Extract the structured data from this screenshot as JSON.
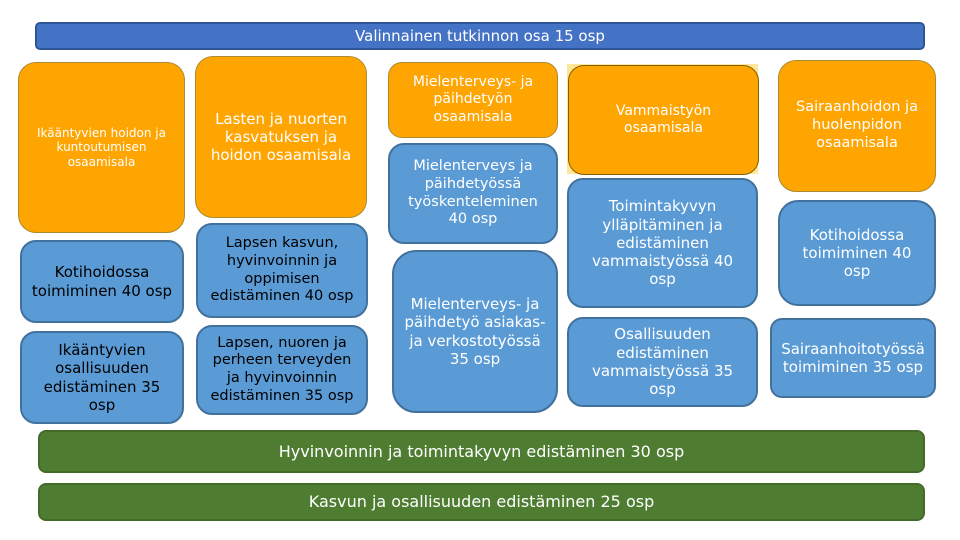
{
  "title_banner": {
    "label": "Valinnainen tutkinnon osa 15 osp"
  },
  "columns": [
    {
      "header": {
        "label": "Ikääntyvien hoidon ja kuntoutumisen osaamisala"
      },
      "units": [
        {
          "label": "Kotihoidossa toimiminen 40 osp"
        },
        {
          "label": "Ikääntyvien osallisuuden edistäminen 35 osp"
        }
      ]
    },
    {
      "header": {
        "label": "Lasten ja nuorten kasvatuksen ja hoidon osaamisala"
      },
      "units": [
        {
          "label": "Lapsen kasvun, hyvinvoinnin ja oppimisen edistäminen 40 osp"
        },
        {
          "label": "Lapsen, nuoren ja perheen terveyden ja hyvinvoinnin edistäminen 35 osp"
        }
      ]
    },
    {
      "header": {
        "label": "Mielenterveys- ja päihdetyön osaamisala"
      },
      "units": [
        {
          "label": "Mielenterveys ja päihdetyössä työskenteleminen 40 osp"
        },
        {
          "label": "Mielenterveys- ja päihdetyö asiakas- ja verkostotyössä 35 osp"
        }
      ]
    },
    {
      "header": {
        "label": "Vammaistyön osaamisala"
      },
      "units": [
        {
          "label": "Toimintakyvyn ylläpitäminen ja edistäminen vammaistyössä 40 osp"
        },
        {
          "label": "Osallisuuden edistäminen vammaistyössä 35 osp"
        }
      ]
    },
    {
      "header": {
        "label": "Sairaanhoidon ja huolenpidon osaamisala"
      },
      "units": [
        {
          "label": "Kotihoidossa toimiminen 40 osp"
        },
        {
          "label": "Sairaanhoitotyössä toimiminen 35 osp"
        }
      ]
    }
  ],
  "bottom_banners": [
    {
      "label": "Hyvinvoinnin ja toimintakyvyn edistäminen 30 osp"
    },
    {
      "label": "Kasvun ja osallisuuden edistäminen 25 osp"
    }
  ],
  "colors": {
    "banner_blue": "#4472C4",
    "unit_blue": "#5B9BD5",
    "header_orange": "#FFA502",
    "highlight_yellow": "#FFE699",
    "banner_green": "#4E7D32"
  }
}
